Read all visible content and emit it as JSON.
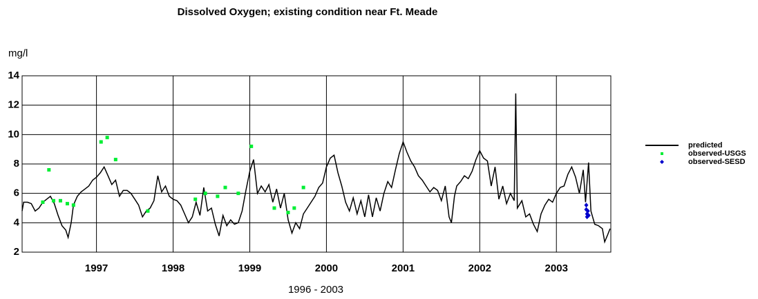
{
  "chart_data": {
    "type": "line",
    "title": "Dissolved Oxygen; existing condition near Ft. Meade",
    "y_label": "mg/l",
    "x_label": "1996 - 2003",
    "xlim": [
      1996.03,
      2003.71
    ],
    "xticks": [
      1997,
      1998,
      1999,
      2000,
      2001,
      2002,
      2003
    ],
    "ylim": [
      2,
      14
    ],
    "yticks": [
      2,
      4,
      6,
      8,
      10,
      12,
      14
    ],
    "grid": true,
    "legend": "right",
    "series": [
      {
        "name": "predicted",
        "type": "line",
        "color": "#000000",
        "x": [
          1996.03,
          1996.05,
          1996.1,
          1996.15,
          1996.2,
          1996.25,
          1996.3,
          1996.35,
          1996.4,
          1996.45,
          1996.5,
          1996.55,
          1996.6,
          1996.63,
          1996.67,
          1996.7,
          1996.75,
          1996.8,
          1996.85,
          1996.9,
          1996.95,
          1997.0,
          1997.05,
          1997.1,
          1997.15,
          1997.2,
          1997.25,
          1997.3,
          1997.35,
          1997.4,
          1997.45,
          1997.5,
          1997.55,
          1997.6,
          1997.65,
          1997.7,
          1997.75,
          1997.8,
          1997.85,
          1997.9,
          1997.95,
          1998.0,
          1998.05,
          1998.1,
          1998.15,
          1998.2,
          1998.25,
          1998.3,
          1998.35,
          1998.4,
          1998.45,
          1998.5,
          1998.55,
          1998.6,
          1998.65,
          1998.7,
          1998.75,
          1998.8,
          1998.85,
          1998.9,
          1998.95,
          1999.0,
          1999.05,
          1999.1,
          1999.15,
          1999.2,
          1999.25,
          1999.3,
          1999.35,
          1999.4,
          1999.45,
          1999.5,
          1999.55,
          1999.6,
          1999.65,
          1999.7,
          1999.75,
          1999.8,
          1999.85,
          1999.9,
          1999.95,
          2000.0,
          2000.05,
          2000.1,
          2000.15,
          2000.2,
          2000.25,
          2000.3,
          2000.35,
          2000.4,
          2000.45,
          2000.5,
          2000.55,
          2000.6,
          2000.65,
          2000.7,
          2000.75,
          2000.8,
          2000.85,
          2000.9,
          2000.95,
          2001.0,
          2001.05,
          2001.1,
          2001.15,
          2001.2,
          2001.25,
          2001.3,
          2001.35,
          2001.4,
          2001.45,
          2001.5,
          2001.55,
          2001.6,
          2001.63,
          2001.67,
          2001.7,
          2001.75,
          2001.8,
          2001.85,
          2001.9,
          2001.95,
          2002.0,
          2002.05,
          2002.1,
          2002.15,
          2002.2,
          2002.25,
          2002.3,
          2002.35,
          2002.4,
          2002.45,
          2002.47,
          2002.49,
          2002.55,
          2002.6,
          2002.65,
          2002.7,
          2002.75,
          2002.8,
          2002.85,
          2002.9,
          2002.95,
          2003.0,
          2003.05,
          2003.1,
          2003.15,
          2003.2,
          2003.25,
          2003.3,
          2003.35,
          2003.38,
          2003.42,
          2003.45,
          2003.5,
          2003.55,
          2003.6,
          2003.63,
          2003.67,
          2003.7
        ],
        "values": [
          4.8,
          5.4,
          5.4,
          5.3,
          4.8,
          5.0,
          5.4,
          5.6,
          5.8,
          5.3,
          4.5,
          3.8,
          3.5,
          3.0,
          4.0,
          5.2,
          5.8,
          6.1,
          6.3,
          6.5,
          6.9,
          7.1,
          7.4,
          7.8,
          7.2,
          6.6,
          6.9,
          5.8,
          6.2,
          6.2,
          6.0,
          5.6,
          5.2,
          4.4,
          4.8,
          5.0,
          5.5,
          7.2,
          6.1,
          6.5,
          5.8,
          5.6,
          5.5,
          5.2,
          4.6,
          4.0,
          4.4,
          5.4,
          4.5,
          6.4,
          4.8,
          5.0,
          3.9,
          3.1,
          4.5,
          3.8,
          4.2,
          3.9,
          4.0,
          4.8,
          6.2,
          7.5,
          8.3,
          6.0,
          6.5,
          6.1,
          6.6,
          5.4,
          6.3,
          5.0,
          6.0,
          4.2,
          3.3,
          4.0,
          3.6,
          4.6,
          5.0,
          5.4,
          5.8,
          6.4,
          6.7,
          7.8,
          8.4,
          8.6,
          7.4,
          6.5,
          5.4,
          4.8,
          5.7,
          4.6,
          5.5,
          4.4,
          5.9,
          4.4,
          5.7,
          4.8,
          6.0,
          6.8,
          6.4,
          7.6,
          8.7,
          9.5,
          8.8,
          8.2,
          7.8,
          7.2,
          6.9,
          6.5,
          6.1,
          6.4,
          6.2,
          5.5,
          6.5,
          4.4,
          4.0,
          5.8,
          6.5,
          6.8,
          7.2,
          7.0,
          7.5,
          8.3,
          8.9,
          8.4,
          8.2,
          6.5,
          7.8,
          5.6,
          6.5,
          5.3,
          6.0,
          5.5,
          12.8,
          5.0,
          5.5,
          4.4,
          4.6,
          3.9,
          3.4,
          4.6,
          5.2,
          5.6,
          5.4,
          6.0,
          6.4,
          6.5,
          7.3,
          7.8,
          7.1,
          6.0,
          7.6,
          5.4,
          8.1,
          4.8,
          3.9,
          3.8,
          3.6,
          2.7,
          3.2,
          3.6
        ]
      },
      {
        "name": "observed-USGS",
        "type": "scatter",
        "marker": "square",
        "color": "#00ee33",
        "x": [
          1996.3,
          1996.38,
          1996.44,
          1996.53,
          1996.62,
          1996.7,
          1997.06,
          1997.14,
          1997.25,
          1997.67,
          1998.29,
          1998.42,
          1998.58,
          1998.68,
          1998.85,
          1999.02,
          1999.32,
          1999.5,
          1999.58,
          1999.7
        ],
        "values": [
          5.4,
          7.6,
          5.5,
          5.5,
          5.3,
          5.2,
          9.5,
          9.8,
          8.3,
          4.8,
          5.6,
          6.0,
          5.8,
          6.4,
          6.0,
          9.2,
          5.0,
          4.7,
          5.0,
          6.4
        ]
      },
      {
        "name": "observed-SESD",
        "type": "scatter",
        "marker": "diamond",
        "color": "#0000cc",
        "x": [
          2003.39,
          2003.39,
          2003.4,
          2003.4,
          2003.41,
          2003.42
        ],
        "values": [
          5.2,
          4.9,
          4.6,
          4.4,
          4.8,
          4.5
        ]
      }
    ]
  }
}
